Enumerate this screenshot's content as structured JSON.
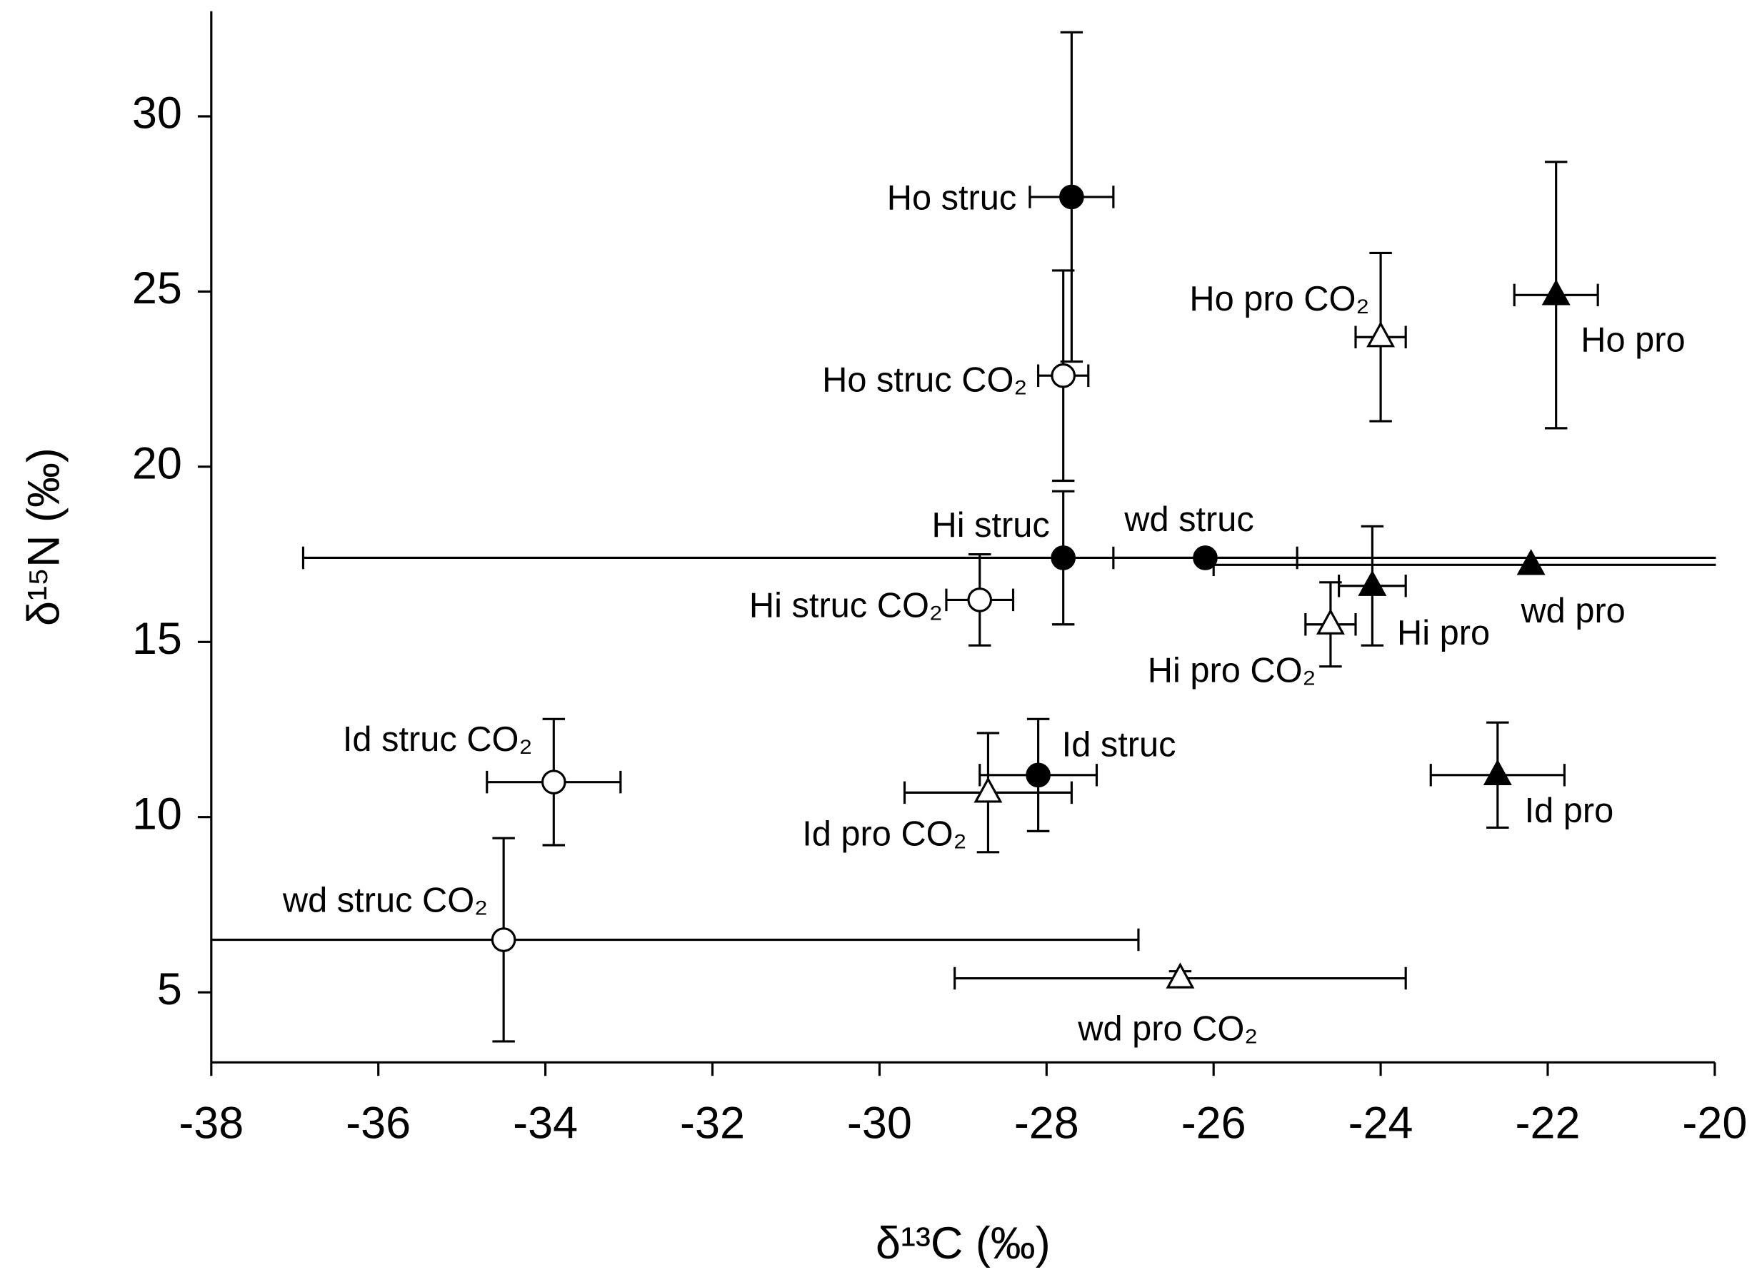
{
  "chart_data": {
    "type": "scatter",
    "x_label": "δ¹³C (‰)",
    "y_label": "δ¹⁵N (‰)",
    "xlim": [
      -38,
      -20
    ],
    "xticks": [
      -38,
      -36,
      -34,
      -32,
      -30,
      -28,
      -26,
      -24,
      -22,
      -20
    ],
    "ylim": [
      3,
      33
    ],
    "yticks": [
      5,
      10,
      15,
      20,
      25,
      30
    ],
    "color": "#000000",
    "series": [
      {
        "name": "Ho struc",
        "marker": "circle",
        "filled": true,
        "x": -27.7,
        "y": 27.7,
        "xerr": 0.5,
        "yerr": 4.7
      },
      {
        "name": "Ho struc CO₂",
        "marker": "circle",
        "filled": false,
        "x": -27.8,
        "y": 22.6,
        "xerr": 0.3,
        "yerr": 3.0
      },
      {
        "name": "Ho pro CO₂",
        "marker": "triangle",
        "filled": false,
        "x": -24.0,
        "y": 23.7,
        "xerr": 0.3,
        "yerr": 2.4
      },
      {
        "name": "Ho pro",
        "marker": "triangle",
        "filled": true,
        "x": -21.9,
        "y": 24.9,
        "xerr": 0.5,
        "yerr": 3.8
      },
      {
        "name": "Hi struc",
        "marker": "circle",
        "filled": true,
        "x": -27.8,
        "y": 17.4,
        "xerr": 9.1,
        "yerr": 1.9
      },
      {
        "name": "wd struc",
        "marker": "circle",
        "filled": true,
        "x": -26.1,
        "y": 17.4,
        "xerr": 1.1,
        "yerr": 0
      },
      {
        "name": "Hi struc CO₂",
        "marker": "circle",
        "filled": false,
        "x": -28.8,
        "y": 16.2,
        "xerr": 0.4,
        "yerr": 1.3
      },
      {
        "name": "Hi pro",
        "marker": "triangle",
        "filled": true,
        "x": -24.1,
        "y": 16.6,
        "xerr": 0.4,
        "yerr": 1.7
      },
      {
        "name": "wd pro",
        "marker": "triangle",
        "filled": true,
        "x": -22.2,
        "y": 17.2,
        "xerr": 3.8,
        "yerr": 0
      },
      {
        "name": "Hi pro CO₂",
        "marker": "triangle",
        "filled": false,
        "x": -24.6,
        "y": 15.5,
        "xerr": 0.3,
        "yerr": 1.2
      },
      {
        "name": "Id struc CO₂",
        "marker": "circle",
        "filled": false,
        "x": -33.9,
        "y": 11.0,
        "xerr": 0.8,
        "yerr": 1.8
      },
      {
        "name": "Id struc",
        "marker": "circle",
        "filled": true,
        "x": -28.1,
        "y": 11.2,
        "xerr": 0.7,
        "yerr": 1.6
      },
      {
        "name": "Id pro CO₂",
        "marker": "triangle",
        "filled": false,
        "x": -28.7,
        "y": 10.7,
        "xerr": 1.0,
        "yerr": 1.7
      },
      {
        "name": "Id pro",
        "marker": "triangle",
        "filled": true,
        "x": -22.6,
        "y": 11.2,
        "xerr": 0.8,
        "yerr": 1.5
      },
      {
        "name": "wd struc CO₂",
        "marker": "circle",
        "filled": false,
        "x": -34.5,
        "y": 6.5,
        "xerr": 7.6,
        "yerr": 2.9
      },
      {
        "name": "wd pro CO₂",
        "marker": "triangle",
        "filled": false,
        "x": -26.4,
        "y": 5.4,
        "xerr": 2.7,
        "yerr": 0.2
      }
    ]
  }
}
